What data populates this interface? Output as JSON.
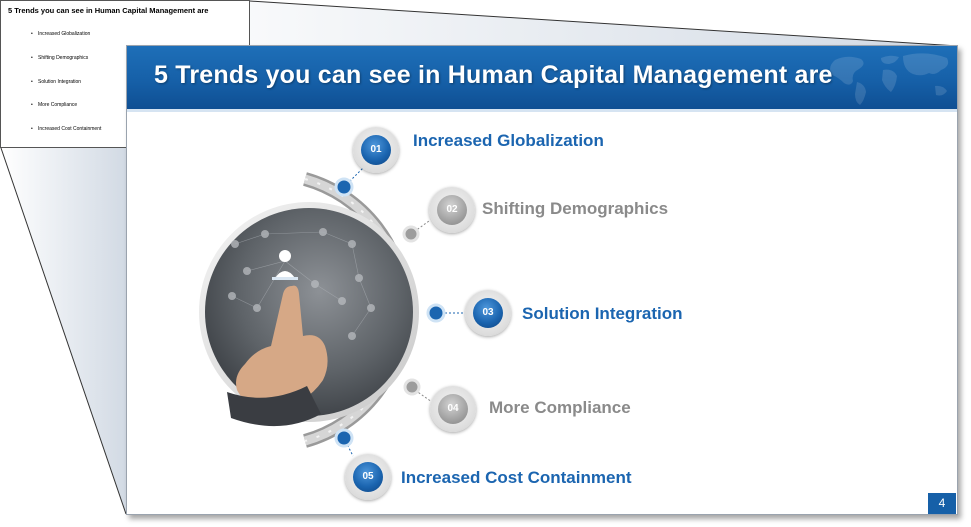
{
  "notes_thumbnail": {
    "title": "5 Trends you can see in Human Capital Management are",
    "items": [
      "Increased Globalization",
      "Shifting Demographics",
      "Solution Integration",
      "More Compliance",
      "Increased Cost Containment"
    ]
  },
  "slide": {
    "title": "5 Trends you can see in Human Capital Management are",
    "page_number": "4",
    "trends": [
      {
        "number": "01",
        "label": "Increased Globalization",
        "style": "blue"
      },
      {
        "number": "02",
        "label": "Shifting Demographics",
        "style": "grey"
      },
      {
        "number": "03",
        "label": "Solution Integration",
        "style": "blue"
      },
      {
        "number": "04",
        "label": "More Compliance",
        "style": "grey"
      },
      {
        "number": "05",
        "label": "Increased Cost Containment",
        "style": "blue"
      }
    ]
  },
  "colors": {
    "accent_blue": "#1b65b0",
    "header_blue": "#1660a8",
    "muted_grey": "#8a8a8a"
  }
}
